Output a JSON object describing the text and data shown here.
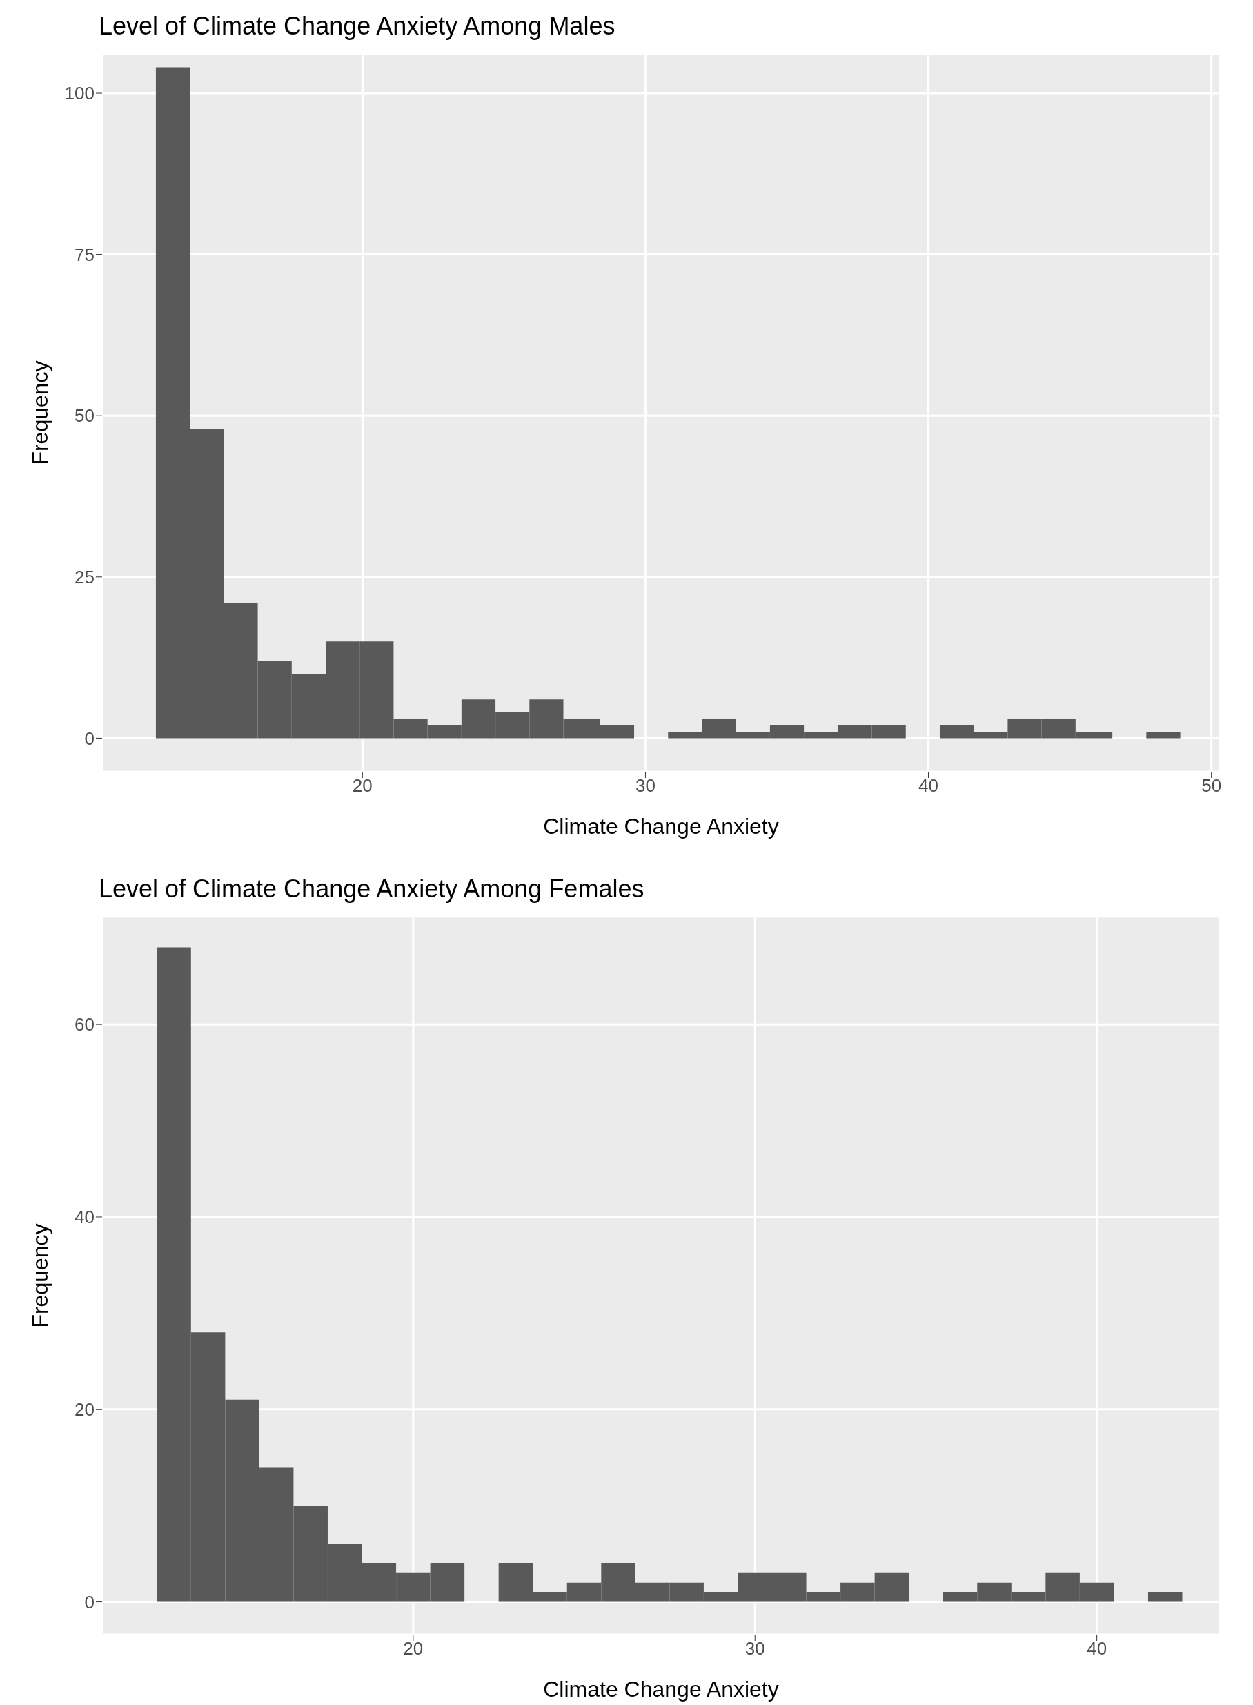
{
  "chart_data": [
    {
      "type": "histogram",
      "title": "Level of Climate Change Anxiety Among Males",
      "xlabel": "Climate Change Anxiety",
      "ylabel": "Frequency",
      "bins": [
        12.7,
        13.9,
        15.1,
        16.3,
        17.5,
        18.7,
        19.9,
        21.1,
        22.3,
        23.5,
        24.7,
        25.9,
        27.1,
        28.4,
        29.6,
        30.8,
        32.0,
        33.2,
        34.4,
        35.6,
        36.8,
        38.0,
        39.2,
        40.4,
        41.6,
        42.8,
        44.0,
        45.2,
        46.5,
        47.7,
        48.9
      ],
      "values": [
        104,
        48,
        21,
        12,
        10,
        15,
        15,
        3,
        2,
        6,
        4,
        6,
        3,
        2,
        0,
        1,
        3,
        1,
        2,
        1,
        2,
        2,
        0,
        2,
        1,
        3,
        3,
        1,
        0,
        1
      ],
      "color": "#595959",
      "xlim": [
        10.8,
        50.3
      ],
      "ylim": [
        -5.2,
        106.1
      ],
      "xticks": [
        20,
        30,
        40,
        50
      ],
      "yticks": [
        0,
        25,
        50,
        75,
        100
      ],
      "grid": true
    },
    {
      "type": "histogram",
      "title": "Level of Climate Change Anxiety Among Females",
      "xlabel": "Climate Change Anxiety",
      "ylabel": "Frequency",
      "bins": [
        12.5,
        13.5,
        14.5,
        15.5,
        16.5,
        17.5,
        18.5,
        19.5,
        20.5,
        21.5,
        22.5,
        23.5,
        24.5,
        25.5,
        26.5,
        27.5,
        28.5,
        29.5,
        30.5,
        31.5,
        32.5,
        33.5,
        34.5,
        35.5,
        36.5,
        37.5,
        38.5,
        39.5,
        40.5,
        41.5,
        42.5
      ],
      "values": [
        68,
        28,
        21,
        14,
        10,
        6,
        4,
        3,
        4,
        0,
        4,
        1,
        2,
        4,
        2,
        2,
        1,
        3,
        3,
        1,
        2,
        3,
        0,
        1,
        2,
        1,
        3,
        2,
        0,
        1
      ],
      "color": "#595959",
      "xlim": [
        10.9,
        43.6
      ],
      "ylim": [
        -3.4,
        71.2
      ],
      "xticks": [
        20,
        30,
        40
      ],
      "yticks": [
        0,
        20,
        40,
        60
      ],
      "grid": true
    }
  ]
}
